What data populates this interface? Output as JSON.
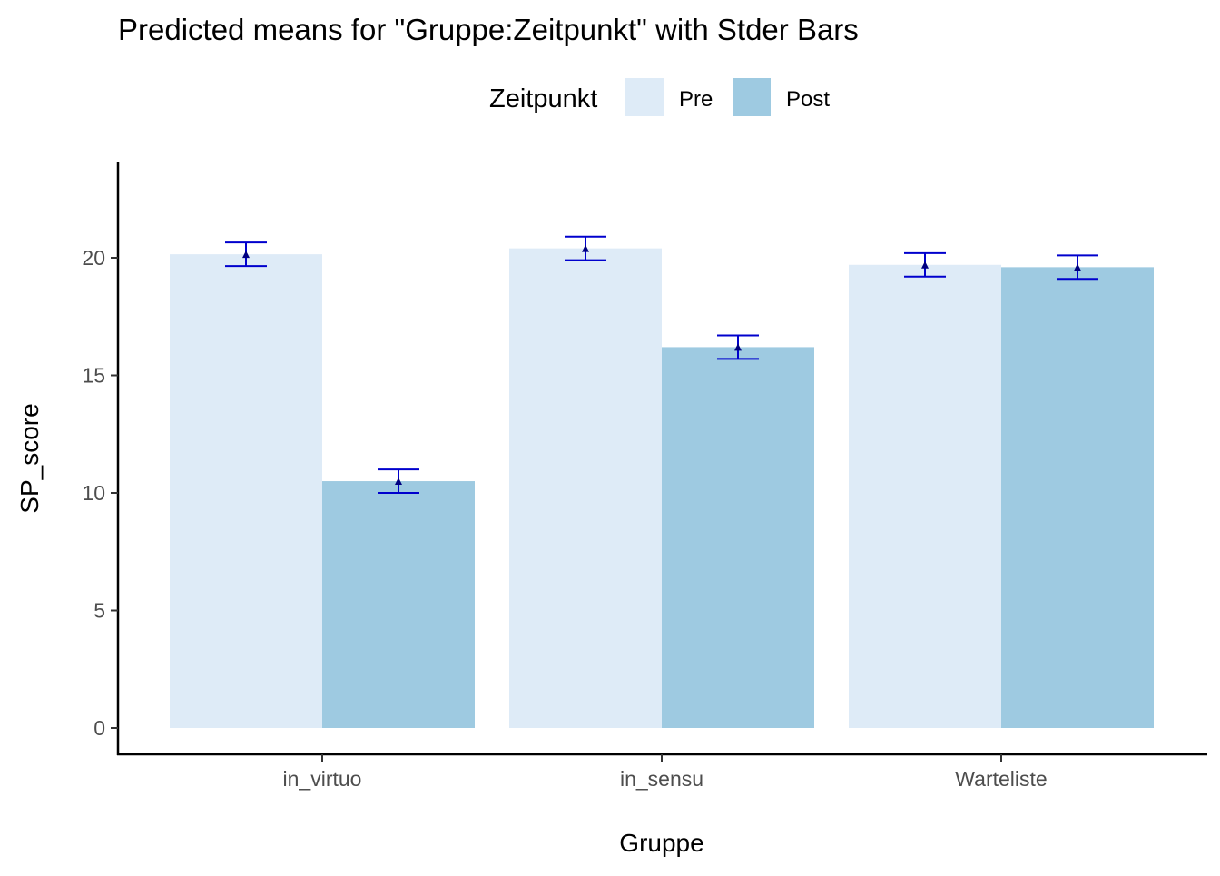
{
  "chart_data": {
    "type": "bar",
    "title": "Predicted means for \"Gruppe:Zeitpunkt\" with Stder Bars",
    "xlabel": "Gruppe",
    "ylabel": "SP_score",
    "categories": [
      "in_virtuo",
      "in_sensu",
      "Warteliste"
    ],
    "legend": {
      "title": "Zeitpunkt",
      "position": "top"
    },
    "ylim": [
      0,
      24
    ],
    "yticks": [
      0,
      5,
      10,
      15,
      20
    ],
    "grid": false,
    "series": [
      {
        "name": "Pre",
        "color": "#deebf7",
        "values": [
          20.15,
          20.4,
          19.7
        ],
        "stderr": [
          0.5,
          0.5,
          0.5
        ]
      },
      {
        "name": "Post",
        "color": "#9ecae1",
        "values": [
          10.5,
          16.2,
          19.6
        ],
        "stderr": [
          0.5,
          0.5,
          0.5
        ]
      }
    ],
    "errorbar_color": "#0000cd",
    "point_color": "#000080"
  }
}
